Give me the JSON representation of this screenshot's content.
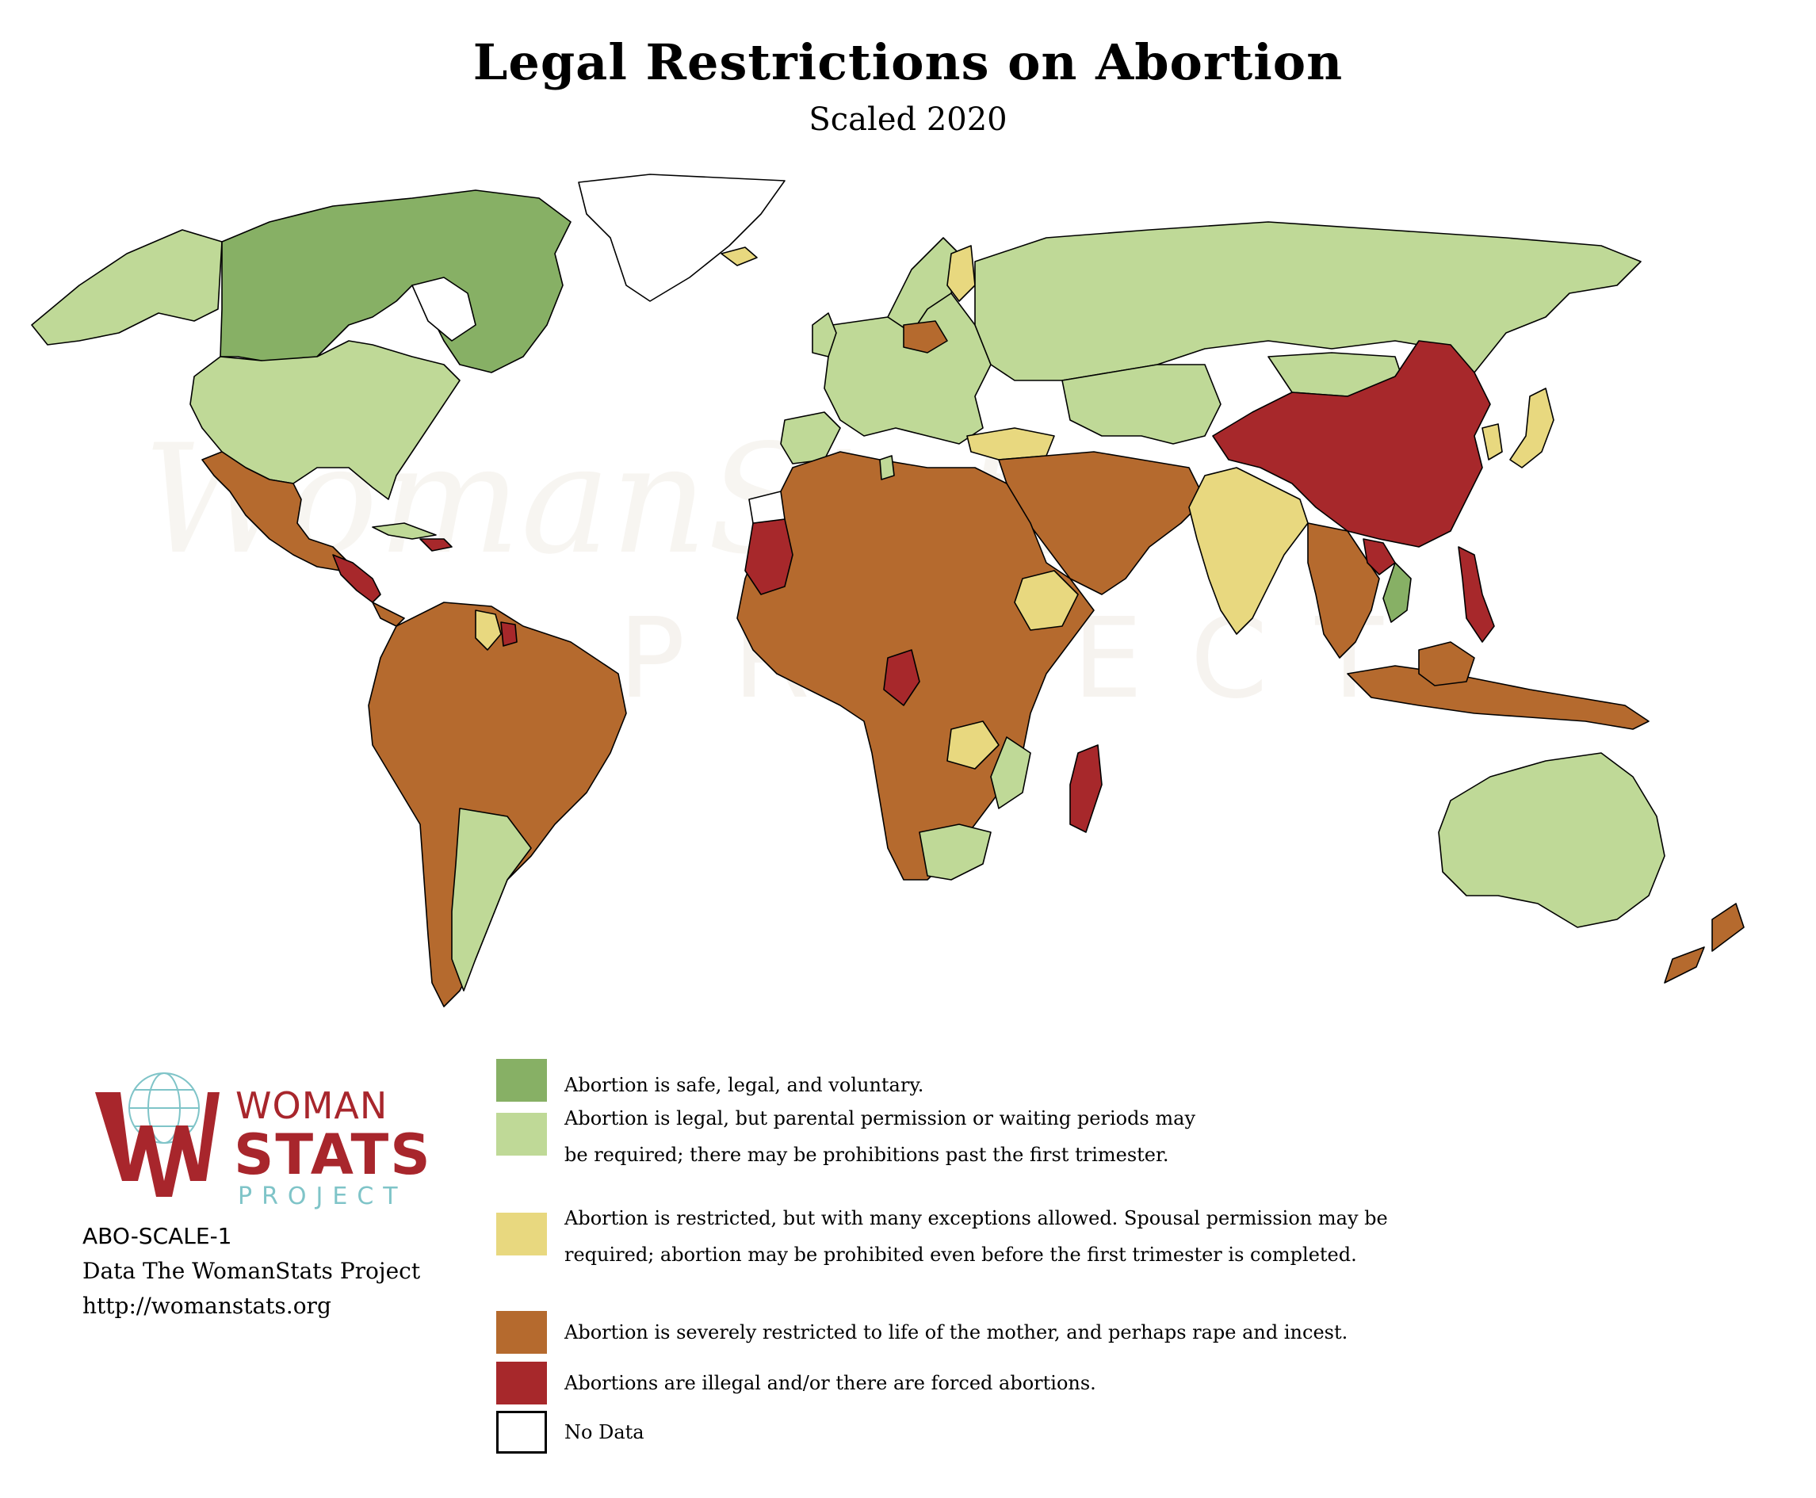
{
  "title": "Legal Restrictions on Abortion",
  "subtitle": "Scaled 2020",
  "colors": {
    "safe_legal_voluntary": "#87b065",
    "legal_with_conditions": "#bfd997",
    "restricted_many_exceptions": "#e8d87f",
    "severely_restricted": "#b56a2e",
    "illegal_or_forced": "#a7282b",
    "no_data": "#ffffff"
  },
  "legend": [
    {
      "key": "safe_legal_voluntary",
      "color": "#87b065",
      "lines": [
        "Abortion is safe, legal, and voluntary."
      ]
    },
    {
      "key": "legal_with_conditions",
      "color": "#bfd997",
      "lines": [
        "Abortion is legal, but parental permission or waiting periods may",
        "be required; there may be prohibitions past the first trimester."
      ]
    },
    {
      "key": "restricted_many_exceptions",
      "color": "#e8d87f",
      "lines": [
        "Abortion is restricted, but with many exceptions allowed. Spousal permission may be",
        "required; abortion may be prohibited even before the first trimester is completed."
      ]
    },
    {
      "key": "severely_restricted",
      "color": "#b56a2e",
      "lines": [
        "Abortion is severely restricted to life of the mother, and perhaps rape and incest."
      ]
    },
    {
      "key": "illegal_or_forced",
      "color": "#a7282b",
      "lines": [
        "Abortions are illegal and/or there are forced abortions."
      ]
    },
    {
      "key": "no_data",
      "color": "#ffffff",
      "lines": [
        "No Data"
      ]
    }
  ],
  "logo": {
    "word1": "WOMAN",
    "word2": "STATS",
    "word3": "PROJECT",
    "icon": "globe-hands-logo-icon"
  },
  "meta": {
    "code": "ABO-SCALE-1",
    "credit": "Data The WomanStats Project",
    "url": "http://womanstats.org"
  },
  "watermark": {
    "text1": "WomanStats",
    "text2": "PROJECT"
  }
}
